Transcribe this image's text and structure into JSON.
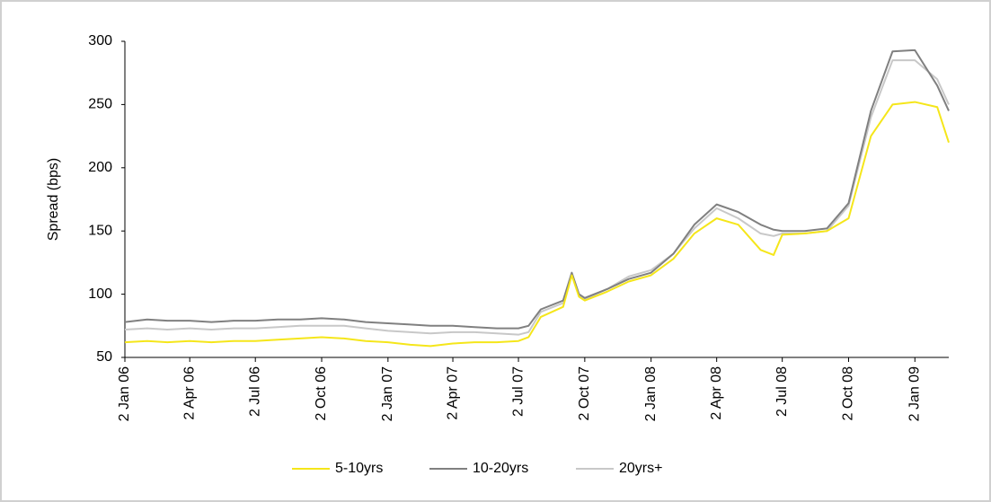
{
  "chart_data": {
    "type": "line",
    "y_label": "Spread (bps)",
    "x": [
      "2006-01-02",
      "2006-02-02",
      "2006-03-02",
      "2006-04-02",
      "2006-05-02",
      "2006-06-02",
      "2006-07-02",
      "2006-08-02",
      "2006-09-02",
      "2006-10-02",
      "2006-11-02",
      "2006-12-02",
      "2007-01-02",
      "2007-02-02",
      "2007-03-02",
      "2007-04-02",
      "2007-05-02",
      "2007-06-02",
      "2007-07-02",
      "2007-07-16",
      "2007-08-02",
      "2007-09-02",
      "2007-09-14",
      "2007-09-24",
      "2007-10-02",
      "2007-11-02",
      "2007-12-02",
      "2008-01-02",
      "2008-02-02",
      "2008-03-02",
      "2008-04-02",
      "2008-05-02",
      "2008-06-02",
      "2008-06-20",
      "2008-07-02",
      "2008-08-02",
      "2008-09-02",
      "2008-10-02",
      "2008-11-02",
      "2008-12-02",
      "2009-01-02",
      "2009-02-02",
      "2009-02-18"
    ],
    "series": [
      {
        "name": "5-10yrs",
        "color": "#f5e61a",
        "values": [
          62,
          63,
          62,
          63,
          62,
          63,
          63,
          64,
          65,
          66,
          65,
          63,
          62,
          60,
          59,
          61,
          62,
          62,
          63,
          66,
          82,
          90,
          115,
          98,
          95,
          102,
          110,
          115,
          128,
          148,
          160,
          155,
          135,
          131,
          147,
          148,
          150,
          160,
          225,
          250,
          252,
          248,
          220
        ]
      },
      {
        "name": "10-20yrs",
        "color": "#808080",
        "values": [
          78,
          80,
          79,
          79,
          78,
          79,
          79,
          80,
          80,
          81,
          80,
          78,
          77,
          76,
          75,
          75,
          74,
          73,
          73,
          75,
          88,
          95,
          117,
          100,
          97,
          104,
          112,
          117,
          132,
          155,
          171,
          165,
          155,
          151,
          150,
          150,
          152,
          172,
          245,
          292,
          293,
          265,
          245
        ]
      },
      {
        "name": "20yrs+",
        "color": "#c8c8c8",
        "values": [
          72,
          73,
          72,
          73,
          72,
          73,
          73,
          74,
          75,
          75,
          75,
          73,
          71,
          70,
          69,
          70,
          70,
          69,
          68,
          70,
          86,
          93,
          116,
          99,
          96,
          104,
          114,
          119,
          132,
          152,
          168,
          160,
          148,
          146,
          148,
          148,
          150,
          170,
          240,
          285,
          285,
          270,
          250
        ]
      }
    ],
    "xlim": [
      "2006-01-02",
      "2009-02-18"
    ],
    "xticks": [
      {
        "value": "2006-01-02",
        "label": "2 Jan 06"
      },
      {
        "value": "2006-04-02",
        "label": "2 Apr 06"
      },
      {
        "value": "2006-07-02",
        "label": "2 Jul 06"
      },
      {
        "value": "2006-10-02",
        "label": "2 Oct 06"
      },
      {
        "value": "2007-01-02",
        "label": "2 Jan 07"
      },
      {
        "value": "2007-04-02",
        "label": "2 Apr 07"
      },
      {
        "value": "2007-07-02",
        "label": "2 Jul 07"
      },
      {
        "value": "2007-10-02",
        "label": "2 Oct 07"
      },
      {
        "value": "2008-01-02",
        "label": "2 Jan 08"
      },
      {
        "value": "2008-04-02",
        "label": "2 Apr 08"
      },
      {
        "value": "2008-07-02",
        "label": "2 Jul 08"
      },
      {
        "value": "2008-10-02",
        "label": "2 Oct 08"
      },
      {
        "value": "2009-01-02",
        "label": "2 Jan 09"
      }
    ],
    "ylim": [
      50,
      300
    ],
    "yticks": [
      50,
      100,
      150,
      200,
      250,
      300
    ],
    "legend": "bottom"
  }
}
